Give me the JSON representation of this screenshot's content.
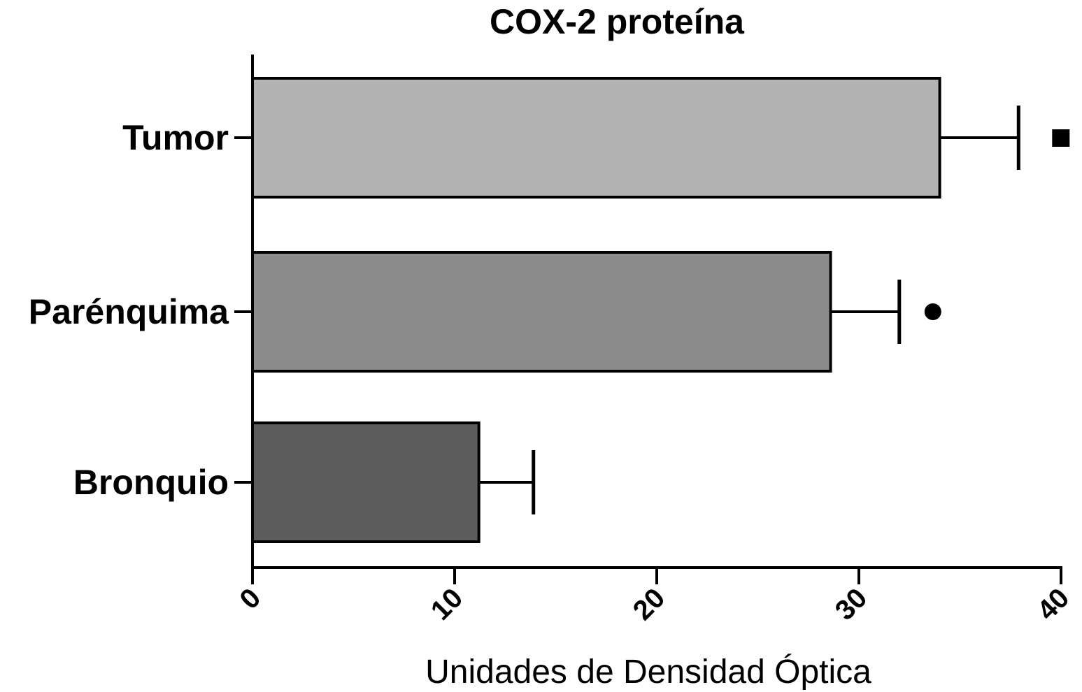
{
  "chart_data": {
    "type": "bar",
    "orientation": "horizontal",
    "title": "COX-2 proteína",
    "xlabel": "Unidades de Densidad Óptica",
    "ylabel": "",
    "xlim": [
      0,
      40
    ],
    "xticks": [
      0,
      10,
      20,
      30,
      40
    ],
    "xtick_labels": [
      "0",
      "10",
      "20",
      "30",
      "40"
    ],
    "grid": false,
    "categories": [
      "Tumor",
      "Parénquima",
      "Bronquio"
    ],
    "values": [
      34.0,
      28.6,
      11.2
    ],
    "error_plus": [
      3.9,
      3.4,
      2.7
    ],
    "bar_colors": [
      "#b3b3b3",
      "#8c8c8c",
      "#5c5c5c"
    ],
    "significance_markers": [
      "square",
      "circle",
      null
    ]
  }
}
